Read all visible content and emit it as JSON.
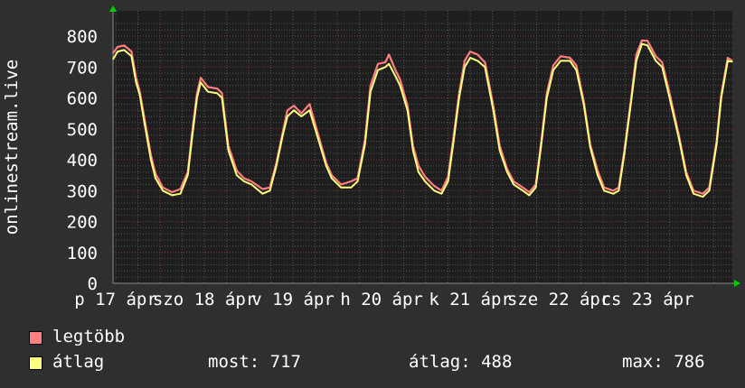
{
  "chart_data": {
    "type": "line",
    "ylabel": "onlinestream.live",
    "ylim": [
      0,
      800
    ],
    "yticks": [
      "0",
      "100",
      "200",
      "300",
      "400",
      "500",
      "600",
      "700",
      "800"
    ],
    "x_range": [
      "17 11:15",
      "24 11:00"
    ],
    "xtick_labels": [
      "p 17 ápr",
      "szo 18 ápr",
      "v 19 ápr",
      "h 20 ápr",
      "k 21 ápr",
      "sze 22 ápr",
      "cs 23 ápr"
    ],
    "grid": true,
    "legend_placement": "bottom-left",
    "colors": {
      "background": "#2f2f2f",
      "plot": "#1e1e1e",
      "grid_minor": "#555555",
      "grid_major": "#7a3a3a",
      "max": "#ff7f7f",
      "avg": "#ffff80",
      "arrow": "#00cc00"
    },
    "series": [
      {
        "name": "legtöbb",
        "key": "max"
      },
      {
        "name": "átlag",
        "key": "avg"
      }
    ],
    "points": [
      [
        "17 11:15",
        725,
        745
      ],
      [
        "17 12:30",
        750,
        765
      ],
      [
        "17 14:15",
        755,
        770
      ],
      [
        "17 16:15",
        735,
        750
      ],
      [
        "17 17:30",
        650,
        665
      ],
      [
        "17 18:30",
        610,
        620
      ],
      [
        "17 19:45",
        520,
        535
      ],
      [
        "17 21:30",
        400,
        415
      ],
      [
        "17 22:45",
        340,
        355
      ],
      [
        "18 00:45",
        300,
        310
      ],
      [
        "18 03:15",
        285,
        295
      ],
      [
        "18 05:30",
        290,
        305
      ],
      [
        "18 07:30",
        350,
        360
      ],
      [
        "18 08:45",
        480,
        495
      ],
      [
        "18 10:00",
        600,
        615
      ],
      [
        "18 11:00",
        650,
        665
      ],
      [
        "18 13:00",
        620,
        635
      ],
      [
        "18 15:30",
        615,
        630
      ],
      [
        "18 16:45",
        600,
        615
      ],
      [
        "18 18:30",
        430,
        445
      ],
      [
        "18 20:45",
        350,
        365
      ],
      [
        "18 22:45",
        330,
        340
      ],
      [
        "19 00:45",
        320,
        330
      ],
      [
        "19 03:45",
        290,
        305
      ],
      [
        "19 05:45",
        300,
        310
      ],
      [
        "19 07:30",
        380,
        390
      ],
      [
        "19 09:15",
        480,
        490
      ],
      [
        "19 10:30",
        540,
        560
      ],
      [
        "19 12:15",
        560,
        575
      ],
      [
        "19 14:15",
        540,
        550
      ],
      [
        "19 16:30",
        560,
        580
      ],
      [
        "19 18:30",
        480,
        495
      ],
      [
        "19 21:00",
        380,
        390
      ],
      [
        "19 22:30",
        340,
        350
      ],
      [
        "20 01:00",
        310,
        320
      ],
      [
        "20 03:45",
        310,
        330
      ],
      [
        "20 05:30",
        330,
        340
      ],
      [
        "20 07:30",
        450,
        465
      ],
      [
        "20 09:00",
        620,
        640
      ],
      [
        "20 11:00",
        690,
        710
      ],
      [
        "20 13:00",
        700,
        715
      ],
      [
        "20 14:00",
        710,
        740
      ],
      [
        "20 15:45",
        670,
        690
      ],
      [
        "20 17:00",
        640,
        660
      ],
      [
        "20 19:00",
        560,
        575
      ],
      [
        "20 20:30",
        430,
        445
      ],
      [
        "20 22:00",
        360,
        380
      ],
      [
        "20 23:45",
        330,
        345
      ],
      [
        "21 02:15",
        300,
        315
      ],
      [
        "21 04:15",
        290,
        300
      ],
      [
        "21 06:00",
        330,
        345
      ],
      [
        "21 07:30",
        460,
        475
      ],
      [
        "21 09:00",
        600,
        615
      ],
      [
        "21 10:30",
        700,
        720
      ],
      [
        "21 12:00",
        730,
        750
      ],
      [
        "21 14:00",
        720,
        740
      ],
      [
        "21 16:00",
        700,
        715
      ],
      [
        "21 18:15",
        560,
        575
      ],
      [
        "21 20:00",
        430,
        445
      ],
      [
        "21 22:00",
        360,
        370
      ],
      [
        "21 23:45",
        320,
        330
      ],
      [
        "22 02:15",
        300,
        310
      ],
      [
        "22 04:00",
        285,
        295
      ],
      [
        "22 05:45",
        310,
        320
      ],
      [
        "22 07:15",
        450,
        460
      ],
      [
        "22 08:45",
        600,
        615
      ],
      [
        "22 10:30",
        690,
        705
      ],
      [
        "22 12:30",
        720,
        735
      ],
      [
        "22 15:00",
        720,
        730
      ],
      [
        "22 16:45",
        690,
        705
      ],
      [
        "22 18:45",
        580,
        590
      ],
      [
        "22 20:30",
        440,
        450
      ],
      [
        "22 22:30",
        350,
        365
      ],
      [
        "23 00:15",
        300,
        310
      ],
      [
        "23 02:45",
        290,
        300
      ],
      [
        "23 04:15",
        300,
        310
      ],
      [
        "23 05:45",
        420,
        430
      ],
      [
        "23 07:30",
        580,
        590
      ],
      [
        "23 09:00",
        720,
        740
      ],
      [
        "23 10:30",
        775,
        786
      ],
      [
        "23 12:00",
        770,
        785
      ],
      [
        "23 14:15",
        720,
        735
      ],
      [
        "23 16:00",
        700,
        715
      ],
      [
        "23 18:00",
        600,
        615
      ],
      [
        "23 20:30",
        470,
        480
      ],
      [
        "23 22:30",
        350,
        360
      ],
      [
        "24 00:30",
        290,
        300
      ],
      [
        "24 03:00",
        280,
        290
      ],
      [
        "24 04:45",
        300,
        310
      ],
      [
        "24 06:45",
        450,
        460
      ],
      [
        "24 08:00",
        600,
        610
      ],
      [
        "24 09:45",
        720,
        730
      ],
      [
        "24 11:00",
        717,
        720
      ]
    ]
  },
  "legend": {
    "max_label": "legtöbb",
    "avg_label": "átlag",
    "current": "most: 717",
    "average": "átlag: 488",
    "maximum": "max: 786"
  }
}
